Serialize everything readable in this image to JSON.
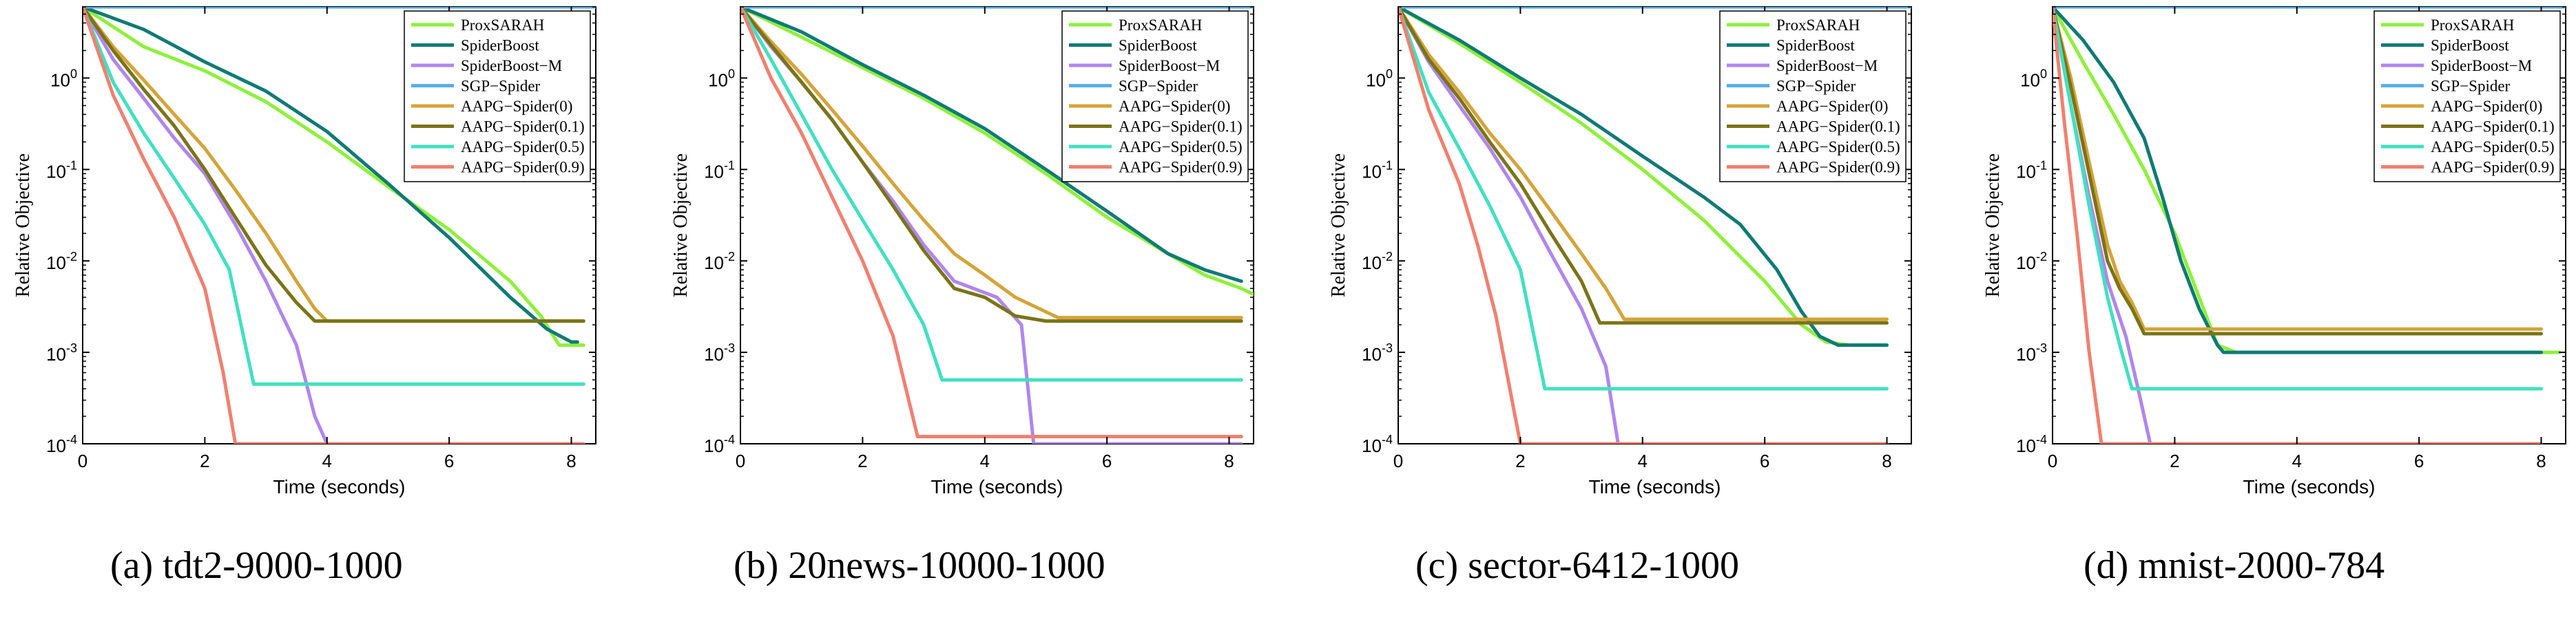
{
  "figure": {
    "captions": [
      "(a) tdt2-9000-1000",
      "(b) 20news-10000-1000",
      "(c) sector-6412-1000",
      "(d) mnist-2000-784"
    ]
  },
  "chart_data": [
    {
      "type": "line",
      "title": "",
      "xlabel": "Time (seconds)",
      "ylabel": "Relative Objective",
      "xlim": [
        0,
        8.4
      ],
      "ylim": [
        0.0001,
        6
      ],
      "yscale": "log",
      "xticks": [
        "0",
        "2",
        "4",
        "6",
        "8"
      ],
      "yticks": [
        "10^0",
        "10^-1",
        "10^-2",
        "10^-3",
        "10^-4"
      ],
      "legend_position": "top-right",
      "grid": false,
      "series": [
        {
          "name": "ProxSARAH",
          "color": "#8ef03c",
          "x": [
            0,
            1,
            2,
            3,
            4,
            5,
            6,
            7,
            7.5,
            7.8,
            8.0,
            8.2
          ],
          "y": [
            6,
            2.2,
            1.2,
            0.55,
            0.2,
            0.065,
            0.022,
            0.006,
            0.0025,
            0.0012,
            0.0012,
            0.0012
          ]
        },
        {
          "name": "SpiderBoost",
          "color": "#107a75",
          "x": [
            0,
            1,
            2,
            3,
            4,
            5,
            6,
            7,
            7.6,
            8.0,
            8.1
          ],
          "y": [
            6,
            3.4,
            1.5,
            0.72,
            0.26,
            0.07,
            0.018,
            0.004,
            0.0018,
            0.0013,
            0.0013
          ]
        },
        {
          "name": "SpiderBoost−M",
          "color": "#b086ec",
          "x": [
            0,
            0.5,
            1,
            1.5,
            2,
            2.5,
            3,
            3.5,
            3.8,
            4.0
          ],
          "y": [
            6,
            1.6,
            0.6,
            0.22,
            0.09,
            0.025,
            0.006,
            0.0012,
            0.0002,
            0.0001
          ]
        },
        {
          "name": "SGP−Spider",
          "color": "#5aaee8",
          "x": [
            0,
            8.4
          ],
          "y": [
            6,
            6
          ]
        },
        {
          "name": "AAPG−Spider(0)",
          "color": "#d4a43a",
          "x": [
            0,
            0.5,
            1,
            1.5,
            2,
            2.5,
            3,
            3.5,
            3.8,
            4.0,
            8.2
          ],
          "y": [
            6,
            2.2,
            0.95,
            0.4,
            0.17,
            0.06,
            0.02,
            0.006,
            0.003,
            0.0022,
            0.0022
          ]
        },
        {
          "name": "AAPG−Spider(0.1)",
          "color": "#7a7418",
          "x": [
            0,
            0.5,
            1,
            1.5,
            2,
            2.5,
            3,
            3.5,
            3.8,
            8.2
          ],
          "y": [
            6,
            2,
            0.75,
            0.3,
            0.1,
            0.03,
            0.009,
            0.0035,
            0.0022,
            0.0022
          ]
        },
        {
          "name": "AAPG−Spider(0.5)",
          "color": "#42e0c0",
          "x": [
            0,
            0.5,
            1,
            1.5,
            2,
            2.4,
            2.8,
            8.2
          ],
          "y": [
            6,
            0.9,
            0.25,
            0.08,
            0.025,
            0.008,
            0.00045,
            0.00045
          ]
        },
        {
          "name": "AAPG−Spider(0.9)",
          "color": "#f08070",
          "x": [
            0,
            0.5,
            1,
            1.5,
            2,
            2.3,
            2.5,
            8.2
          ],
          "y": [
            6,
            0.65,
            0.13,
            0.03,
            0.005,
            0.0006,
            0.0001,
            0.0001
          ]
        }
      ]
    },
    {
      "type": "line",
      "title": "",
      "xlabel": "Time (seconds)",
      "ylabel": "Relative Objective",
      "xlim": [
        0,
        8.4
      ],
      "ylim": [
        0.0001,
        6
      ],
      "yscale": "log",
      "xticks": [
        "0",
        "2",
        "4",
        "6",
        "8"
      ],
      "yticks": [
        "10^0",
        "10^-1",
        "10^-2",
        "10^-3",
        "10^-4"
      ],
      "legend_position": "top-right",
      "grid": false,
      "series": [
        {
          "name": "ProxSARAH",
          "color": "#8ef03c",
          "x": [
            0,
            1,
            2,
            3,
            4,
            5,
            6,
            7,
            7.6,
            8.2,
            8.5
          ],
          "y": [
            6,
            2.8,
            1.3,
            0.6,
            0.25,
            0.09,
            0.03,
            0.012,
            0.007,
            0.005,
            0.004
          ]
        },
        {
          "name": "SpiderBoost",
          "color": "#107a75",
          "x": [
            0,
            1,
            2,
            3,
            4,
            5,
            6,
            7,
            7.6,
            8.2
          ],
          "y": [
            6,
            3.2,
            1.4,
            0.65,
            0.28,
            0.1,
            0.035,
            0.012,
            0.008,
            0.006
          ]
        },
        {
          "name": "SpiderBoost−M",
          "color": "#b086ec",
          "x": [
            0,
            0.5,
            1,
            1.5,
            2,
            2.5,
            3,
            3.5,
            4.2,
            4.6,
            4.8,
            8.2
          ],
          "y": [
            6,
            2.2,
            0.9,
            0.35,
            0.12,
            0.045,
            0.015,
            0.006,
            0.004,
            0.002,
            0.0001,
            0.0001
          ]
        },
        {
          "name": "SGP−Spider",
          "color": "#5aaee8",
          "x": [
            0,
            8.4
          ],
          "y": [
            6,
            6
          ]
        },
        {
          "name": "AAPG−Spider(0)",
          "color": "#d4a43a",
          "x": [
            0,
            0.5,
            1,
            1.5,
            2,
            2.5,
            3,
            3.5,
            4,
            4.5,
            5.2,
            8.2
          ],
          "y": [
            6,
            2.5,
            1.1,
            0.45,
            0.18,
            0.07,
            0.028,
            0.012,
            0.007,
            0.004,
            0.0024,
            0.0024
          ]
        },
        {
          "name": "AAPG−Spider(0.1)",
          "color": "#7a7418",
          "x": [
            0,
            0.5,
            1,
            1.5,
            2,
            2.5,
            3,
            3.5,
            4,
            4.5,
            5,
            8.2
          ],
          "y": [
            6,
            2.3,
            0.9,
            0.35,
            0.12,
            0.04,
            0.013,
            0.005,
            0.004,
            0.0025,
            0.0022,
            0.0022
          ]
        },
        {
          "name": "AAPG−Spider(0.5)",
          "color": "#42e0c0",
          "x": [
            0,
            0.5,
            1,
            1.5,
            2,
            2.5,
            3,
            3.3,
            8.2
          ],
          "y": [
            6,
            1.6,
            0.4,
            0.1,
            0.028,
            0.008,
            0.002,
            0.0005,
            0.0005
          ]
        },
        {
          "name": "AAPG−Spider(0.9)",
          "color": "#f08070",
          "x": [
            0,
            0.5,
            1,
            1.5,
            2,
            2.5,
            2.9,
            3.3,
            8.2
          ],
          "y": [
            6,
            1.0,
            0.25,
            0.05,
            0.01,
            0.0015,
            0.00012,
            0.00012,
            0.00012
          ]
        }
      ]
    },
    {
      "type": "line",
      "title": "",
      "xlabel": "Time (seconds)",
      "ylabel": "Relative Objective",
      "xlim": [
        0,
        8.4
      ],
      "ylim": [
        0.0001,
        6
      ],
      "yscale": "log",
      "xticks": [
        "0",
        "2",
        "4",
        "6",
        "8"
      ],
      "yticks": [
        "10^0",
        "10^-1",
        "10^-2",
        "10^-3",
        "10^-4"
      ],
      "legend_position": "top-right",
      "grid": false,
      "series": [
        {
          "name": "ProxSARAH",
          "color": "#8ef03c",
          "x": [
            0,
            1,
            2,
            3,
            4,
            5,
            6,
            6.6,
            7.0,
            7.4,
            8.0
          ],
          "y": [
            6,
            2.4,
            0.9,
            0.32,
            0.1,
            0.028,
            0.006,
            0.002,
            0.0013,
            0.0012,
            0.0012
          ]
        },
        {
          "name": "SpiderBoost",
          "color": "#107a75",
          "x": [
            0,
            1,
            2,
            3,
            4,
            5,
            5.6,
            6.2,
            6.6,
            6.9,
            7.2,
            8.0
          ],
          "y": [
            6,
            2.6,
            1.0,
            0.4,
            0.14,
            0.05,
            0.025,
            0.008,
            0.0028,
            0.0015,
            0.0012,
            0.0012
          ]
        },
        {
          "name": "SpiderBoost−M",
          "color": "#b086ec",
          "x": [
            0,
            0.5,
            1,
            1.5,
            2,
            2.5,
            3,
            3.4,
            3.6,
            8.0
          ],
          "y": [
            6,
            1.5,
            0.5,
            0.17,
            0.05,
            0.012,
            0.003,
            0.0007,
            0.0001,
            0.0001
          ]
        },
        {
          "name": "SGP−Spider",
          "color": "#5aaee8",
          "x": [
            0,
            8.4
          ],
          "y": [
            6,
            6
          ]
        },
        {
          "name": "AAPG−Spider(0)",
          "color": "#d4a43a",
          "x": [
            0,
            0.5,
            1,
            1.5,
            2,
            2.5,
            3,
            3.4,
            3.7,
            8.0
          ],
          "y": [
            6,
            1.8,
            0.7,
            0.25,
            0.1,
            0.035,
            0.012,
            0.005,
            0.0023,
            0.0023
          ]
        },
        {
          "name": "AAPG−Spider(0.1)",
          "color": "#7a7418",
          "x": [
            0,
            0.5,
            1,
            1.5,
            2,
            2.5,
            3,
            3.3,
            8.0
          ],
          "y": [
            6,
            1.6,
            0.6,
            0.2,
            0.07,
            0.02,
            0.006,
            0.0021,
            0.0021
          ]
        },
        {
          "name": "AAPG−Spider(0.5)",
          "color": "#42e0c0",
          "x": [
            0,
            0.5,
            1,
            1.5,
            2,
            2.4,
            8.0
          ],
          "y": [
            6,
            0.7,
            0.17,
            0.04,
            0.008,
            0.0004,
            0.0004
          ]
        },
        {
          "name": "AAPG−Spider(0.9)",
          "color": "#f08070",
          "x": [
            0,
            0.5,
            1,
            1.3,
            1.6,
            1.8,
            2.0,
            8.0
          ],
          "y": [
            6,
            0.45,
            0.07,
            0.015,
            0.0025,
            0.0005,
            0.0001,
            0.0001
          ]
        }
      ]
    },
    {
      "type": "line",
      "title": "",
      "xlabel": "Time (seconds)",
      "ylabel": "Relative Objective",
      "xlim": [
        0,
        8.4
      ],
      "ylim": [
        0.0001,
        6
      ],
      "yscale": "log",
      "xticks": [
        "0",
        "2",
        "4",
        "6",
        "8"
      ],
      "yticks": [
        "10^0",
        "10^-1",
        "10^-2",
        "10^-3",
        "10^-4"
      ],
      "legend_position": "top-right",
      "grid": false,
      "series": [
        {
          "name": "ProxSARAH",
          "color": "#8ef03c",
          "x": [
            0,
            0.5,
            1,
            1.5,
            2,
            2.4,
            2.7,
            3.0,
            8.3
          ],
          "y": [
            6,
            1.5,
            0.4,
            0.1,
            0.02,
            0.004,
            0.0012,
            0.001,
            0.001
          ]
        },
        {
          "name": "SpiderBoost",
          "color": "#107a75",
          "x": [
            0,
            0.5,
            1,
            1.5,
            1.8,
            2.1,
            2.4,
            2.7,
            2.8,
            8.0
          ],
          "y": [
            6,
            2.6,
            0.9,
            0.22,
            0.05,
            0.01,
            0.003,
            0.0012,
            0.001,
            0.001
          ]
        },
        {
          "name": "SpiderBoost−M",
          "color": "#b086ec",
          "x": [
            0,
            0.3,
            0.6,
            0.9,
            1.2,
            1.4,
            1.6,
            8.0
          ],
          "y": [
            6,
            0.5,
            0.05,
            0.006,
            0.0015,
            0.0004,
            0.0001,
            0.0001
          ]
        },
        {
          "name": "SGP−Spider",
          "color": "#5aaee8",
          "x": [
            0,
            8.4
          ],
          "y": [
            6,
            6
          ]
        },
        {
          "name": "AAPG−Spider(0)",
          "color": "#d4a43a",
          "x": [
            0,
            0.3,
            0.6,
            0.9,
            1.1,
            1.3,
            1.5,
            8.0
          ],
          "y": [
            6,
            1.0,
            0.12,
            0.015,
            0.006,
            0.0035,
            0.0018,
            0.0018
          ]
        },
        {
          "name": "AAPG−Spider(0.1)",
          "color": "#7a7418",
          "x": [
            0,
            0.3,
            0.6,
            0.9,
            1.1,
            1.3,
            1.5,
            8.0
          ],
          "y": [
            6,
            0.8,
            0.09,
            0.01,
            0.005,
            0.003,
            0.0016,
            0.0016
          ]
        },
        {
          "name": "AAPG−Spider(0.5)",
          "color": "#42e0c0",
          "x": [
            0,
            0.3,
            0.6,
            0.9,
            1.1,
            1.3,
            8.0
          ],
          "y": [
            6,
            0.5,
            0.04,
            0.004,
            0.0012,
            0.0004,
            0.0004
          ]
        },
        {
          "name": "AAPG−Spider(0.9)",
          "color": "#f08070",
          "x": [
            0,
            0.2,
            0.4,
            0.6,
            0.8,
            8.0
          ],
          "y": [
            6,
            0.3,
            0.02,
            0.001,
            0.0001,
            0.0001
          ]
        }
      ]
    }
  ]
}
